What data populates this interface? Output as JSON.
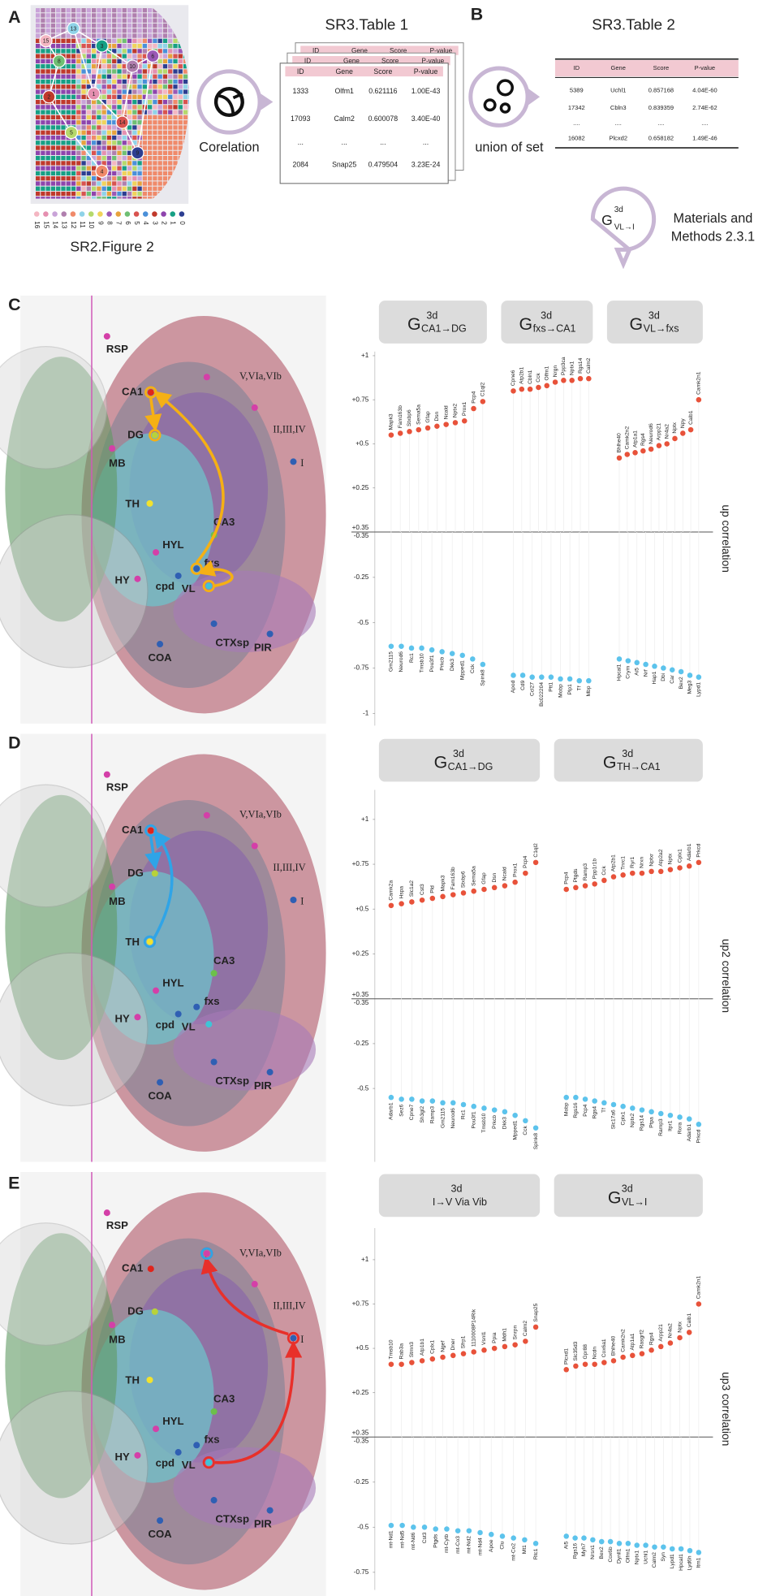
{
  "panel_letters": [
    "A",
    "B",
    "C",
    "D",
    "E"
  ],
  "panel_a": {
    "caption": "SR2.Figure 2",
    "legend": {
      "labels": [
        "16",
        "15",
        "14",
        "13",
        "12",
        "11",
        "10",
        "9",
        "8",
        "7",
        "6",
        "5",
        "4",
        "3",
        "2",
        "1",
        "0"
      ],
      "colors": [
        "#f4b6c2",
        "#e58fb0",
        "#c9a3d8",
        "#b07fae",
        "#f08a6a",
        "#8fd3e8",
        "#b5d96b",
        "#f0d35a",
        "#9b59b6",
        "#e7a23c",
        "#6fbf73",
        "#d9534f",
        "#4a90d9",
        "#c0392b",
        "#8e44ad",
        "#16a085",
        "#2c3e91"
      ]
    },
    "nodes": [
      "15",
      "13",
      "8",
      "3",
      "10",
      "6",
      "2",
      "1",
      "5",
      "14",
      "9",
      "4"
    ]
  },
  "corelation": "Corelation",
  "table1": {
    "title": "SR3.Table 1",
    "header": [
      "ID",
      "Gene",
      "Score",
      "P-value"
    ],
    "rows": [
      [
        "1333",
        "Olfm1",
        "0.621116",
        "1.00E-43"
      ],
      [
        "17093",
        "Calm2",
        "0.600078",
        "3.40E-40"
      ],
      [
        "...",
        "...",
        "...",
        "..."
      ],
      [
        "2084",
        "Snap25",
        "0.479504",
        "3.23E-24"
      ]
    ]
  },
  "table2": {
    "title": "SR3.Table 2",
    "header": [
      "ID",
      "Gene",
      "Score",
      "P-value"
    ],
    "rows": [
      [
        "5389",
        "Uchl1",
        "0.857168",
        "4.04E-60"
      ],
      [
        "17342",
        "Cbln3",
        "0.839359",
        "2.74E-62"
      ],
      [
        "....",
        "....",
        "....",
        "...."
      ],
      [
        "16082",
        "Plcxd2",
        "0.658182",
        "1.49E-46"
      ]
    ]
  },
  "union": "union of set",
  "materials": {
    "g": "G",
    "sup": "3d",
    "sub": "VL→I",
    "lines": [
      "Materials and",
      "Methods 2.3.1"
    ]
  },
  "region_colors": [
    "#d43fa8",
    "#d43fa8",
    "#e0241b",
    "#d43fa8",
    "#b8d23a",
    "#d43fa8",
    "#2f5fb3",
    "#f2e22e",
    "#6cc04a",
    "#d43fa8",
    "#2f5fb3",
    "#d43fa8",
    "#2f5fb3",
    "#3ec4d6",
    "#2f5fb3",
    "#2f5fb3",
    "#2f5fb3"
  ],
  "panels": [
    {
      "regions": [
        "RSP",
        "V,VIa,VIb",
        "CA1",
        "II,III,IV",
        "DG",
        "MB",
        "I",
        "TH",
        "CA3",
        "HYL",
        "fxs",
        "HY",
        "cpd",
        "VL",
        "CTXsp",
        "PIR",
        "COA"
      ],
      "side_label": "up correlation",
      "divider_labels": [
        "+0.35",
        "-0.35"
      ],
      "yticks": [
        {
          "value": 1,
          "label": "+1"
        },
        {
          "value": 0.75,
          "label": "+0.75"
        },
        {
          "value": 0.5,
          "label": "+0.5"
        },
        {
          "value": 0.25,
          "label": "+0.25"
        },
        {
          "value": -0.25,
          "label": "-0.25"
        },
        {
          "value": -0.5,
          "label": "-0.5"
        },
        {
          "value": -0.75,
          "label": "-0.75"
        },
        {
          "value": -1,
          "label": "-1"
        }
      ],
      "groups": [
        {
          "title": {
            "g": "G",
            "sup": "3d",
            "sub": "CA1→DG"
          },
          "up": {
            "genes": [
              "Mapk3",
              "Fam163b",
              "Stxbp6",
              "Sema5a",
              "Gfap",
              "Dsn",
              "Ncald",
              "Nptx2",
              "Prox1",
              "Pcp4",
              "C1ql2"
            ],
            "values": [
              0.55,
              0.56,
              0.57,
              0.58,
              0.59,
              0.6,
              0.61,
              0.62,
              0.63,
              0.7,
              0.74
            ]
          },
          "down": {
            "genes": [
              "Gm2115",
              "Neurod6",
              "Rc1",
              "Tmsb10",
              "Pou3f1",
              "Prkcb",
              "Dkk3",
              "Mpped1",
              "Cck",
              "Spink8"
            ],
            "values": [
              -0.63,
              -0.63,
              -0.64,
              -0.64,
              -0.65,
              -0.66,
              -0.67,
              -0.68,
              -0.7,
              -0.73
            ]
          }
        },
        {
          "title": {
            "g": "G",
            "sup": "3d",
            "sub": "fxs→CA1"
          },
          "up": {
            "genes": [
              "Cpne6",
              "Atp2b1",
              "Cbln1",
              "Cck",
              "Olfm1",
              "Nrgn",
              "Ppp3ca",
              "Nptx1",
              "Rgs14",
              "Calm2"
            ],
            "values": [
              0.8,
              0.81,
              0.81,
              0.82,
              0.83,
              0.85,
              0.86,
              0.86,
              0.87,
              0.87
            ]
          },
          "down": {
            "genes": [
              "Apod",
              "Cd9",
              "Ccl27",
              "Bc022204",
              "Ptt1",
              "Mobp",
              "Plp1",
              "Tf",
              "Mbp"
            ],
            "values": [
              -0.79,
              -0.79,
              -0.8,
              -0.8,
              -0.8,
              -0.81,
              -0.81,
              -0.82,
              -0.82
            ]
          }
        },
        {
          "title": {
            "g": "G",
            "sup": "3d",
            "sub": "VL→fxs"
          },
          "up": {
            "genes": [
              "Bhlhe40",
              "Camk2n2",
              "Atp1a1",
              "Rgs4",
              "Neurod6",
              "Arpp21",
              "Nr4a2",
              "Nptx",
              "Npy",
              "Calb1",
              "Camk2n1"
            ],
            "values": [
              0.42,
              0.44,
              0.45,
              0.46,
              0.47,
              0.49,
              0.5,
              0.53,
              0.56,
              0.58,
              0.75
            ]
          },
          "down": {
            "genes": [
              "Hpcal1",
              "Crym",
              "Ai5",
              "Nrf",
              "Hap1",
              "Dbi",
              "Car",
              "Bex2",
              "Meg3",
              "Lypd1"
            ],
            "values": [
              -0.7,
              -0.71,
              -0.72,
              -0.73,
              -0.74,
              -0.75,
              -0.76,
              -0.77,
              -0.79,
              -0.8
            ]
          }
        }
      ]
    },
    {
      "regions": [
        "RSP",
        "V,VIa,VIb",
        "CA1",
        "II,III,IV",
        "DG",
        "MB",
        "I",
        "TH",
        "CA3",
        "HYL",
        "fxs",
        "HY",
        "cpd",
        "VL",
        "CTXsp",
        "PIR",
        "COA"
      ],
      "side_label": "up2 correlation",
      "divider_labels": [
        "+0.35",
        "-0.35"
      ],
      "yticks": [
        {
          "value": 1,
          "label": "+1"
        },
        {
          "value": 0.75,
          "label": "+0.75"
        },
        {
          "value": 0.5,
          "label": "+0.5"
        },
        {
          "value": 0.25,
          "label": "+0.25"
        },
        {
          "value": -0.25,
          "label": "-0.25"
        },
        {
          "value": -0.5,
          "label": "-0.5"
        }
      ],
      "groups": [
        {
          "title": {
            "g": "G",
            "sup": "3d",
            "sub": "CA1→DG"
          },
          "up": {
            "genes": [
              "Camk2a",
              "Hspa",
              "Slc1a2",
              "Cst3",
              "Pld",
              "Mapk3",
              "Fam163b",
              "Stxbp6",
              "Sema5a",
              "Gfap",
              "Dsn",
              "Ncald",
              "Prox1",
              "Pcp4",
              "C1ql2"
            ],
            "values": [
              0.52,
              0.53,
              0.54,
              0.55,
              0.56,
              0.57,
              0.58,
              0.59,
              0.6,
              0.61,
              0.62,
              0.63,
              0.65,
              0.7,
              0.76
            ]
          },
          "down": {
            "genes": [
              "Adarb1",
              "Sez6",
              "Cpne7",
              "Sh3gl2",
              "Ramp3",
              "Gm2115",
              "Neurod6",
              "Rc1",
              "Pou3f1",
              "Tmsb10",
              "Prkcb",
              "Dkk3",
              "Mpped1",
              "Cck",
              "Spink8"
            ],
            "values": [
              -0.55,
              -0.56,
              -0.56,
              -0.57,
              -0.57,
              -0.58,
              -0.58,
              -0.59,
              -0.6,
              -0.61,
              -0.62,
              -0.63,
              -0.65,
              -0.68,
              -0.72
            ]
          }
        },
        {
          "title": {
            "g": "G",
            "sup": "3d",
            "sub": "TH→CA1"
          },
          "up": {
            "genes": [
              "Pcp4",
              "Ptgds",
              "Ramp3",
              "Ppp1r1b",
              "Cck",
              "Atp2b1",
              "Tnrc1",
              "Ryr1",
              "Nrxn",
              "Nptxr",
              "Atp2a2",
              "Nptx",
              "Cplx1",
              "Adarb1",
              "Prkcd"
            ],
            "values": [
              0.61,
              0.62,
              0.63,
              0.64,
              0.66,
              0.68,
              0.69,
              0.7,
              0.7,
              0.71,
              0.71,
              0.72,
              0.73,
              0.74,
              0.76
            ]
          },
          "down": {
            "genes": [
              "Mobp",
              "Rgs16",
              "Pcp4",
              "Rgs4",
              "Tf",
              "Slc17a6",
              "Cplx1",
              "Nptx2",
              "Rgs14",
              "Ptpa",
              "Ramp3",
              "Itpr1",
              "Rora",
              "Adarb1",
              "Prkcd"
            ],
            "values": [
              -0.55,
              -0.55,
              -0.56,
              -0.57,
              -0.58,
              -0.59,
              -0.6,
              -0.61,
              -0.62,
              -0.63,
              -0.64,
              -0.65,
              -0.66,
              -0.67,
              -0.7
            ]
          }
        }
      ]
    },
    {
      "regions": [
        "RSP",
        "V,VIa,VIb",
        "CA1",
        "II,III,IV",
        "DG",
        "MB",
        "I",
        "TH",
        "CA3",
        "HYL",
        "fxs",
        "HY",
        "cpd",
        "VL",
        "CTXsp",
        "PIR",
        "COA"
      ],
      "side_label": "up3 correlation",
      "divider_labels": [
        "+0.35",
        "-0.35"
      ],
      "yticks": [
        {
          "value": 1,
          "label": "+1"
        },
        {
          "value": 0.75,
          "label": "+0.75"
        },
        {
          "value": 0.5,
          "label": "+0.5"
        },
        {
          "value": 0.25,
          "label": "+0.25"
        },
        {
          "value": -0.25,
          "label": "-0.25"
        },
        {
          "value": -0.5,
          "label": "-0.5"
        },
        {
          "value": -0.75,
          "label": "-0.75"
        }
      ],
      "groups": [
        {
          "title": {
            "sup": "3d",
            "sub": "I→V Via Vib"
          },
          "up": {
            "genes": [
              "Tmsb10",
              "Rab3a",
              "Stmn3",
              "Atp1b1",
              "Cplx1",
              "Ngef",
              "Dner",
              "Sfrp1",
              "1110008P14Rik",
              "Vsnl1",
              "Ppia",
              "Mdh1",
              "Snrpn",
              "Calm2",
              "Snap25"
            ],
            "values": [
              0.41,
              0.41,
              0.42,
              0.43,
              0.44,
              0.45,
              0.46,
              0.47,
              0.48,
              0.49,
              0.5,
              0.51,
              0.52,
              0.54,
              0.62
            ]
          },
          "down": {
            "genes": [
              "mt-Nd1",
              "mt-Nd5",
              "mt-Nd6",
              "Cst3",
              "Ptgds",
              "mt-Cytb",
              "mt-Co3",
              "mt-Nd2",
              "mt-Nd4",
              "Apoe",
              "Clu",
              "mt-Co2",
              "Mt1",
              "Rtc1"
            ],
            "values": [
              -0.49,
              -0.49,
              -0.5,
              -0.5,
              -0.51,
              -0.51,
              -0.52,
              -0.52,
              -0.53,
              -0.54,
              -0.55,
              -0.56,
              -0.57,
              -0.59
            ]
          }
        },
        {
          "title": {
            "g": "G",
            "sup": "3d",
            "sub": "VL→I"
          },
          "up": {
            "genes": [
              "Plcxd1",
              "Slc35d3",
              "Gpr88",
              "Ncdn",
              "Cox6a1",
              "Bhlhe40",
              "Camk2n2",
              "Atp1a1",
              "Rasgrf2",
              "Rgs4",
              "Arpp21",
              "Nr4a2",
              "Nptx",
              "Calb1",
              "Camk2n1"
            ],
            "values": [
              0.38,
              0.4,
              0.41,
              0.41,
              0.42,
              0.43,
              0.45,
              0.46,
              0.47,
              0.49,
              0.51,
              0.53,
              0.56,
              0.59,
              0.75
            ]
          },
          "down": {
            "genes": [
              "Ai5",
              "Rgs16",
              "Myh7",
              "Nrsn1",
              "Bex2",
              "Cox6b",
              "Dynll1",
              "Olfm1",
              "Nptx1",
              "Uchl1",
              "Calm2",
              "Syn",
              "Lypd1",
              "Hpcal1",
              "Lyd6h",
              "Itm1"
            ],
            "values": [
              -0.55,
              -0.56,
              -0.56,
              -0.57,
              -0.58,
              -0.58,
              -0.59,
              -0.59,
              -0.6,
              -0.6,
              -0.61,
              -0.61,
              -0.62,
              -0.62,
              -0.63,
              -0.64
            ]
          }
        }
      ]
    }
  ]
}
